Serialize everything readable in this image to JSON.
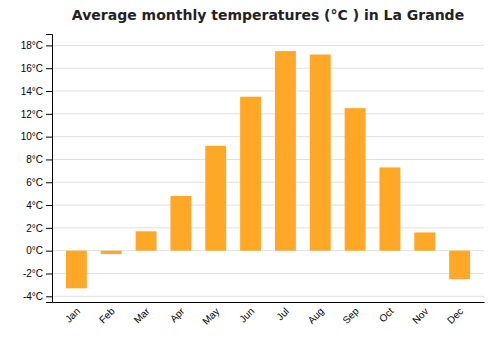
{
  "chart_data": {
    "type": "bar",
    "title": "Average monthly temperatures (°C ) in La Grande",
    "categories": [
      "Jan",
      "Feb",
      "Mar",
      "Apr",
      "May",
      "Jun",
      "Jul",
      "Aug",
      "Sep",
      "Oct",
      "Nov",
      "Dec"
    ],
    "values": [
      -3.3,
      -0.3,
      1.7,
      4.8,
      9.2,
      13.5,
      17.5,
      17.2,
      12.5,
      7.3,
      1.6,
      -2.5
    ],
    "color": "#FFA726",
    "ylim": [
      -4.5,
      19
    ],
    "yticks": [
      {
        "value": -4,
        "label": "-4°C"
      },
      {
        "value": -2,
        "label": "-2°C"
      },
      {
        "value": 0,
        "label": "0°C"
      },
      {
        "value": 2,
        "label": "2°C"
      },
      {
        "value": 4,
        "label": "4°C"
      },
      {
        "value": 6,
        "label": "6°C"
      },
      {
        "value": 8,
        "label": "8°C"
      },
      {
        "value": 10,
        "label": "10°C"
      },
      {
        "value": 12,
        "label": "12°C"
      },
      {
        "value": 14,
        "label": "14°C"
      },
      {
        "value": 16,
        "label": "16°C"
      },
      {
        "value": 18,
        "label": "18°C"
      }
    ],
    "grid": true
  }
}
